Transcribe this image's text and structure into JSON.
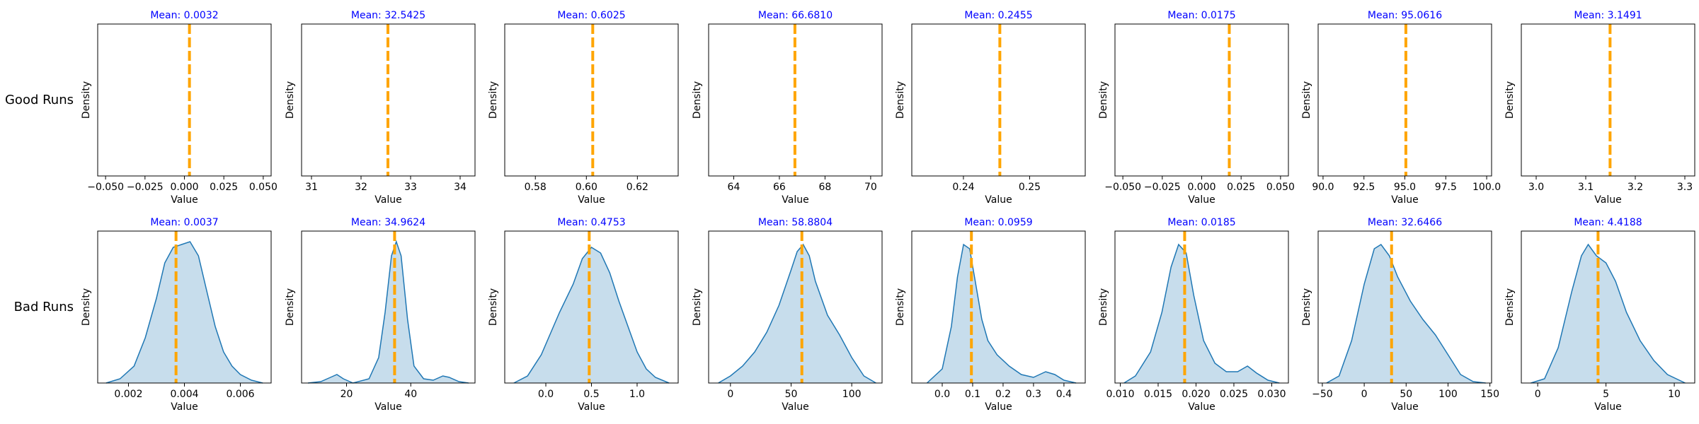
{
  "chart_data": {
    "type": "grid of density plots",
    "row_labels": [
      "Good Runs",
      "Bad Runs"
    ],
    "xlabel": "Value",
    "ylabel": "Density",
    "colors": {
      "mean_line": "#ffa500",
      "title_text": "#0000ff",
      "kde_fill": "#1f77b4"
    },
    "panels": [
      [
        {
          "title": "Mean: 0.0032",
          "mean": 0.0032,
          "xlim": [
            -0.055,
            0.055
          ],
          "xticks": [
            -0.05,
            -0.025,
            0,
            0.025,
            0.05
          ],
          "xtick_labels": [
            "−0.050",
            "−0.025",
            "0.000",
            "0.025",
            "0.050"
          ],
          "kde": []
        },
        {
          "title": "Mean: 32.5425",
          "mean": 32.5425,
          "xlim": [
            30.8,
            34.3
          ],
          "xticks": [
            31,
            32,
            33,
            34
          ],
          "xtick_labels": [
            "31",
            "32",
            "33",
            "34"
          ],
          "kde": []
        },
        {
          "title": "Mean: 0.6025",
          "mean": 0.6025,
          "xlim": [
            0.568,
            0.636
          ],
          "xticks": [
            0.58,
            0.6,
            0.62
          ],
          "xtick_labels": [
            "0.58",
            "0.60",
            "0.62"
          ],
          "kde": []
        },
        {
          "title": "Mean: 66.6810",
          "mean": 66.681,
          "xlim": [
            62.9,
            70.5
          ],
          "xticks": [
            64,
            66,
            68,
            70
          ],
          "xtick_labels": [
            "64",
            "66",
            "68",
            "70"
          ],
          "kde": []
        },
        {
          "title": "Mean: 0.2455",
          "mean": 0.2455,
          "xlim": [
            0.2322,
            0.2584
          ],
          "xticks": [
            0.24,
            0.25
          ],
          "xtick_labels": [
            "0.24",
            "0.25"
          ],
          "kde": []
        },
        {
          "title": "Mean: 0.0175",
          "mean": 0.0175,
          "xlim": [
            -0.055,
            0.055
          ],
          "xticks": [
            -0.05,
            -0.025,
            0,
            0.025,
            0.05
          ],
          "xtick_labels": [
            "−0.050",
            "−0.025",
            "0.000",
            "0.025",
            "0.050"
          ],
          "kde": []
        },
        {
          "title": "Mean: 95.0616",
          "mean": 95.0616,
          "xlim": [
            89.7,
            100.3
          ],
          "xticks": [
            90,
            92.5,
            95,
            97.5,
            100
          ],
          "xtick_labels": [
            "90.0",
            "92.5",
            "95.0",
            "97.5",
            "100.0"
          ],
          "kde": []
        },
        {
          "title": "Mean: 3.1491",
          "mean": 3.1491,
          "xlim": [
            2.97,
            3.32
          ],
          "xticks": [
            3.0,
            3.1,
            3.2,
            3.3
          ],
          "xtick_labels": [
            "3.0",
            "3.1",
            "3.2",
            "3.3"
          ],
          "kde": []
        }
      ],
      [
        {
          "title": "Mean: 0.0037",
          "mean": 0.0037,
          "xlim": [
            0.0009,
            0.0071
          ],
          "xticks": [
            0.002,
            0.004,
            0.006
          ],
          "xtick_labels": [
            "0.002",
            "0.004",
            "0.006"
          ],
          "kde": [
            [
              0.0012,
              0.0
            ],
            [
              0.0017,
              0.03
            ],
            [
              0.0022,
              0.12
            ],
            [
              0.0026,
              0.32
            ],
            [
              0.003,
              0.6
            ],
            [
              0.0033,
              0.85
            ],
            [
              0.0036,
              0.96
            ],
            [
              0.0039,
              0.98
            ],
            [
              0.0042,
              1.0
            ],
            [
              0.0045,
              0.9
            ],
            [
              0.0048,
              0.65
            ],
            [
              0.0051,
              0.4
            ],
            [
              0.0054,
              0.22
            ],
            [
              0.0057,
              0.12
            ],
            [
              0.006,
              0.06
            ],
            [
              0.0064,
              0.02
            ],
            [
              0.0068,
              0.0
            ]
          ]
        },
        {
          "title": "Mean: 34.9624",
          "mean": 34.9624,
          "xlim": [
            6,
            60
          ],
          "xticks": [
            20,
            40
          ],
          "xtick_labels": [
            "20",
            "40"
          ],
          "kde": [
            [
              8,
              0.0
            ],
            [
              12,
              0.01
            ],
            [
              15,
              0.04
            ],
            [
              17,
              0.06
            ],
            [
              19,
              0.03
            ],
            [
              22,
              0.0
            ],
            [
              27,
              0.03
            ],
            [
              30,
              0.18
            ],
            [
              32,
              0.5
            ],
            [
              34,
              0.9
            ],
            [
              35.5,
              1.0
            ],
            [
              37,
              0.9
            ],
            [
              39,
              0.45
            ],
            [
              41,
              0.12
            ],
            [
              44,
              0.03
            ],
            [
              47,
              0.02
            ],
            [
              50,
              0.05
            ],
            [
              52,
              0.04
            ],
            [
              55,
              0.01
            ],
            [
              58,
              0.0
            ]
          ]
        },
        {
          "title": "Mean: 0.4753",
          "mean": 0.4753,
          "xlim": [
            -0.45,
            1.45
          ],
          "xticks": [
            0.0,
            0.5,
            1.0
          ],
          "xtick_labels": [
            "0.0",
            "0.5",
            "1.0"
          ],
          "kde": [
            [
              -0.35,
              0.0
            ],
            [
              -0.2,
              0.05
            ],
            [
              -0.05,
              0.2
            ],
            [
              0.05,
              0.35
            ],
            [
              0.15,
              0.5
            ],
            [
              0.3,
              0.7
            ],
            [
              0.4,
              0.88
            ],
            [
              0.5,
              0.96
            ],
            [
              0.6,
              0.92
            ],
            [
              0.7,
              0.78
            ],
            [
              0.8,
              0.58
            ],
            [
              0.9,
              0.4
            ],
            [
              1.0,
              0.22
            ],
            [
              1.1,
              0.1
            ],
            [
              1.2,
              0.04
            ],
            [
              1.35,
              0.0
            ]
          ]
        },
        {
          "title": "Mean: 58.8804",
          "mean": 58.8804,
          "xlim": [
            -18,
            125
          ],
          "xticks": [
            0,
            50,
            100
          ],
          "xtick_labels": [
            "0",
            "50",
            "100"
          ],
          "kde": [
            [
              -10,
              0.0
            ],
            [
              0,
              0.05
            ],
            [
              10,
              0.12
            ],
            [
              20,
              0.22
            ],
            [
              30,
              0.36
            ],
            [
              40,
              0.55
            ],
            [
              50,
              0.8
            ],
            [
              55,
              0.93
            ],
            [
              60,
              0.98
            ],
            [
              65,
              0.9
            ],
            [
              70,
              0.72
            ],
            [
              80,
              0.48
            ],
            [
              90,
              0.34
            ],
            [
              100,
              0.18
            ],
            [
              110,
              0.05
            ],
            [
              120,
              0.0
            ]
          ]
        },
        {
          "title": "Mean: 0.0959",
          "mean": 0.0959,
          "xlim": [
            -0.1,
            0.47
          ],
          "xticks": [
            0.0,
            0.1,
            0.2,
            0.3,
            0.4
          ],
          "xtick_labels": [
            "0.0",
            "0.1",
            "0.2",
            "0.3",
            "0.4"
          ],
          "kde": [
            [
              -0.05,
              0.0
            ],
            [
              0.0,
              0.1
            ],
            [
              0.03,
              0.4
            ],
            [
              0.05,
              0.75
            ],
            [
              0.07,
              0.98
            ],
            [
              0.09,
              0.95
            ],
            [
              0.11,
              0.7
            ],
            [
              0.13,
              0.45
            ],
            [
              0.15,
              0.3
            ],
            [
              0.18,
              0.2
            ],
            [
              0.22,
              0.12
            ],
            [
              0.26,
              0.06
            ],
            [
              0.3,
              0.04
            ],
            [
              0.34,
              0.08
            ],
            [
              0.37,
              0.06
            ],
            [
              0.4,
              0.02
            ],
            [
              0.44,
              0.0
            ]
          ]
        },
        {
          "title": "Mean: 0.0185",
          "mean": 0.0185,
          "xlim": [
            0.0093,
            0.0322
          ],
          "xticks": [
            0.01,
            0.015,
            0.02,
            0.025,
            0.03
          ],
          "xtick_labels": [
            "0.010",
            "0.015",
            "0.020",
            "0.025",
            "0.030"
          ],
          "kde": [
            [
              0.0105,
              0.0
            ],
            [
              0.012,
              0.05
            ],
            [
              0.014,
              0.22
            ],
            [
              0.0155,
              0.5
            ],
            [
              0.0167,
              0.82
            ],
            [
              0.0177,
              0.98
            ],
            [
              0.0187,
              0.92
            ],
            [
              0.0197,
              0.62
            ],
            [
              0.021,
              0.3
            ],
            [
              0.0225,
              0.14
            ],
            [
              0.024,
              0.08
            ],
            [
              0.0255,
              0.08
            ],
            [
              0.0268,
              0.12
            ],
            [
              0.028,
              0.07
            ],
            [
              0.0295,
              0.02
            ],
            [
              0.031,
              0.0
            ]
          ]
        },
        {
          "title": "Mean: 32.6466",
          "mean": 32.6466,
          "xlim": [
            -55,
            152
          ],
          "xticks": [
            -50,
            0,
            50,
            100,
            150
          ],
          "xtick_labels": [
            "−50",
            "0",
            "50",
            "100",
            "150"
          ],
          "kde": [
            [
              -45,
              0.0
            ],
            [
              -30,
              0.05
            ],
            [
              -15,
              0.3
            ],
            [
              0,
              0.7
            ],
            [
              12,
              0.95
            ],
            [
              20,
              0.98
            ],
            [
              30,
              0.9
            ],
            [
              40,
              0.75
            ],
            [
              55,
              0.58
            ],
            [
              70,
              0.45
            ],
            [
              85,
              0.34
            ],
            [
              100,
              0.2
            ],
            [
              115,
              0.06
            ],
            [
              130,
              0.01
            ],
            [
              145,
              0.0
            ]
          ]
        },
        {
          "title": "Mean: 4.4188",
          "mean": 4.4188,
          "xlim": [
            -1.2,
            11.5
          ],
          "xticks": [
            0,
            5,
            10
          ],
          "xtick_labels": [
            "0",
            "5",
            "10"
          ],
          "kde": [
            [
              -0.5,
              0.0
            ],
            [
              0.5,
              0.03
            ],
            [
              1.5,
              0.25
            ],
            [
              2.5,
              0.65
            ],
            [
              3.2,
              0.9
            ],
            [
              3.7,
              0.98
            ],
            [
              4.3,
              0.9
            ],
            [
              5.0,
              0.85
            ],
            [
              5.7,
              0.72
            ],
            [
              6.5,
              0.5
            ],
            [
              7.5,
              0.3
            ],
            [
              8.5,
              0.16
            ],
            [
              9.5,
              0.06
            ],
            [
              10.8,
              0.0
            ]
          ]
        }
      ]
    ]
  }
}
